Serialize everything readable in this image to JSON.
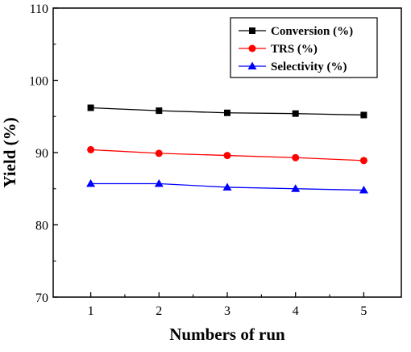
{
  "chart_data": {
    "type": "line",
    "xlabel": "Numbers of run",
    "ylabel": "Yield (%)",
    "x": [
      1,
      2,
      3,
      4,
      5
    ],
    "xticks": [
      "1",
      "2",
      "3",
      "4",
      "5"
    ],
    "xlim": [
      0.45,
      5.55
    ],
    "ylim": [
      70,
      110
    ],
    "yticks": [
      "70",
      "80",
      "90",
      "100",
      "110"
    ],
    "grid": false,
    "legend_position": "top-right",
    "series": [
      {
        "name": "Conversion (%)",
        "color": "#000000",
        "marker": "square",
        "values": [
          96.2,
          95.8,
          95.5,
          95.4,
          95.2
        ]
      },
      {
        "name": "TRS (%)",
        "color": "#ff0000",
        "marker": "circle",
        "values": [
          90.4,
          89.9,
          89.6,
          89.3,
          88.9
        ]
      },
      {
        "name": "Selectivity (%)",
        "color": "#0000ff",
        "marker": "triangle",
        "values": [
          85.7,
          85.7,
          85.2,
          85.0,
          84.8
        ]
      }
    ]
  }
}
